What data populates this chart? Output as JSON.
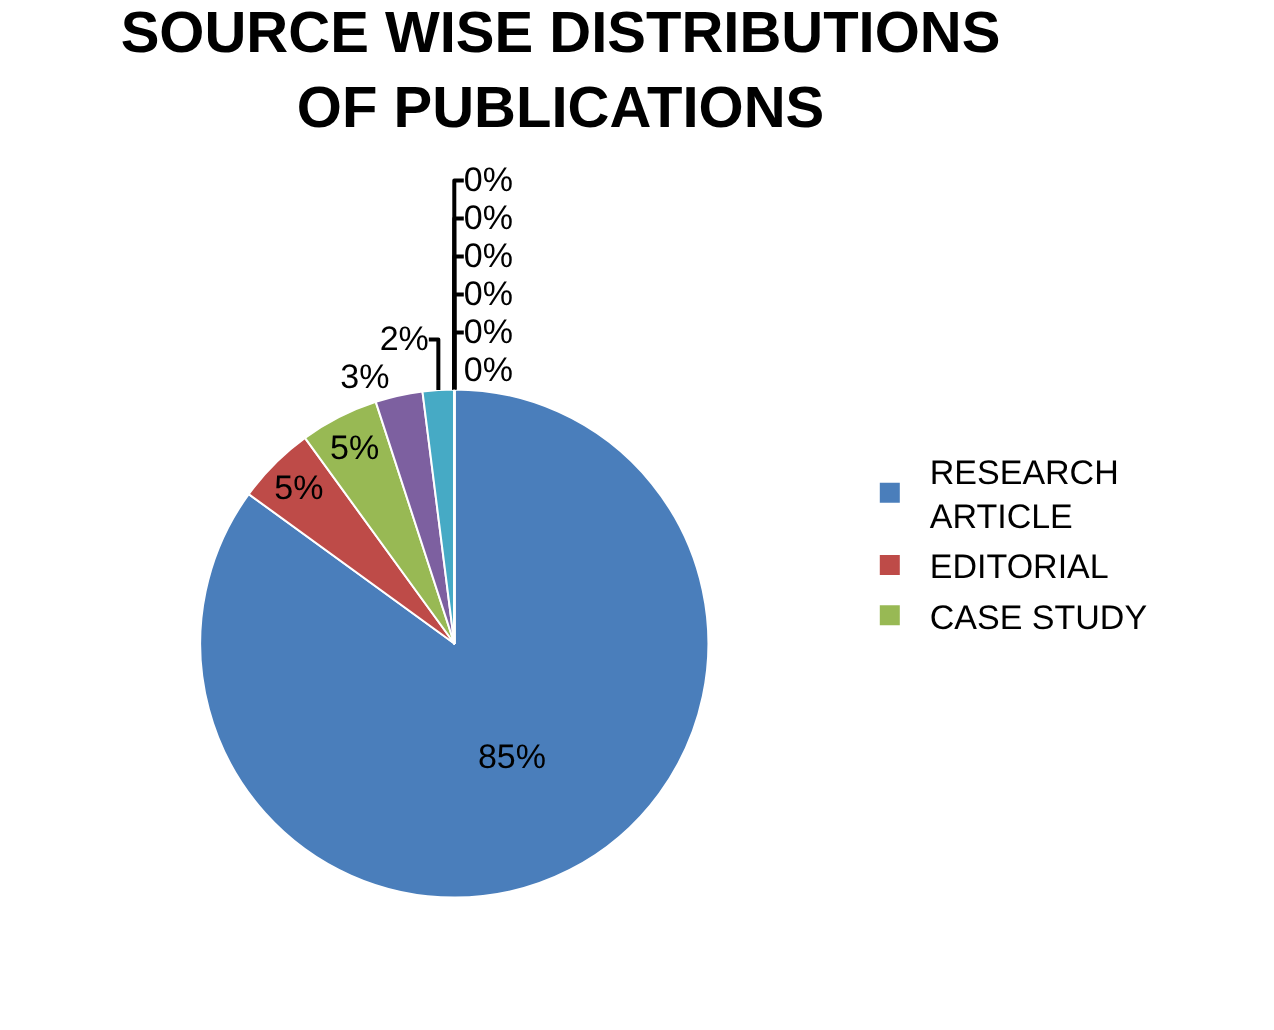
{
  "chart_data": {
    "type": "pie",
    "title": "SOURCE WISE DISTRIBUTIONS OF PUBLICATIONS",
    "categories": [
      "RESEARCH ARTICLE",
      "EDITORIAL",
      "CASE STUDY",
      null,
      null,
      null,
      null,
      null,
      null,
      null,
      null
    ],
    "values": [
      85,
      5,
      5,
      3,
      2,
      0,
      0,
      0,
      0,
      0,
      0
    ],
    "colors": [
      "#4a7ebb",
      "#be4b48",
      "#98b954",
      "#7d60a0",
      "#46aac5",
      "#f79646",
      "#2c4d75",
      "#772c2a",
      "#5f7530",
      "#4d3b62",
      "#276a7c"
    ],
    "value_labels": [
      "85%",
      "5%",
      "5%",
      "3%",
      "2%",
      "0%",
      "0%",
      "0%",
      "0%",
      "0%",
      "0%"
    ],
    "legend": "right"
  }
}
